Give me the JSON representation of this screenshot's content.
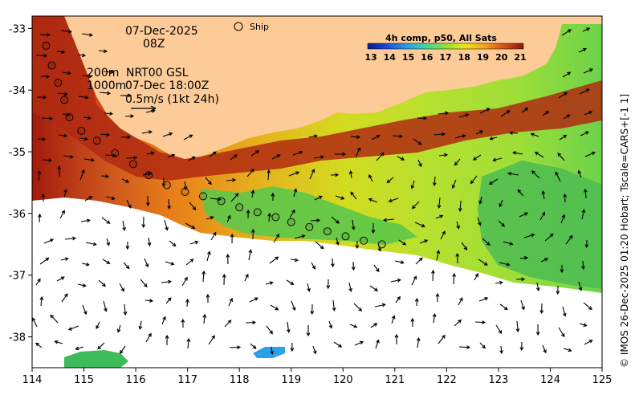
{
  "title": {
    "date": "07-Dec-2025",
    "time": "08Z",
    "depth_line1": "200m",
    "depth_line2": "1000m",
    "product_line1": "NRT00 GSL",
    "product_line2": "07-Dec 18:00Z",
    "scale_label": "0.5m/s (1kt 24h)"
  },
  "legend": {
    "ship_label": "Ship"
  },
  "colorbar": {
    "title": "4h comp, p50, All Sats",
    "ticks": [
      "13",
      "14",
      "15",
      "16",
      "17",
      "18",
      "19",
      "20",
      "21"
    ],
    "colors": [
      "#0a1a8a",
      "#1f47d6",
      "#2a9de8",
      "#40d3a0",
      "#8fe03a",
      "#e8e81a",
      "#f2a51a",
      "#d6541a",
      "#8e1212"
    ]
  },
  "axes": {
    "x_ticks": [
      "114",
      "115",
      "116",
      "117",
      "118",
      "119",
      "120",
      "121",
      "122",
      "123",
      "124",
      "125"
    ],
    "y_ticks": [
      "-33",
      "-34",
      "-35",
      "-36",
      "-37",
      "-38"
    ]
  },
  "credit": "© IMOS 26-Dec-2025 01:20 Hobart; Tscale=CARS+[-1 1]",
  "colors": {
    "land": "#fdcb98",
    "no_data": "#ffffff",
    "frame": "#000000"
  },
  "ship_track": [
    [
      114.27,
      -33.28
    ],
    [
      114.38,
      -33.6
    ],
    [
      114.5,
      -33.88
    ],
    [
      114.62,
      -34.16
    ],
    [
      114.72,
      -34.44
    ],
    [
      114.95,
      -34.66
    ],
    [
      115.25,
      -34.82
    ],
    [
      115.6,
      -35.02
    ],
    [
      115.95,
      -35.2
    ],
    [
      116.25,
      -35.38
    ],
    [
      116.6,
      -35.54
    ],
    [
      116.95,
      -35.65
    ],
    [
      117.3,
      -35.72
    ],
    [
      117.65,
      -35.8
    ],
    [
      118.0,
      -35.9
    ],
    [
      118.35,
      -35.98
    ],
    [
      118.7,
      -36.06
    ],
    [
      119.0,
      -36.14
    ],
    [
      119.35,
      -36.22
    ],
    [
      119.7,
      -36.29
    ],
    [
      120.05,
      -36.37
    ],
    [
      120.4,
      -36.44
    ],
    [
      120.75,
      -36.5
    ]
  ]
}
